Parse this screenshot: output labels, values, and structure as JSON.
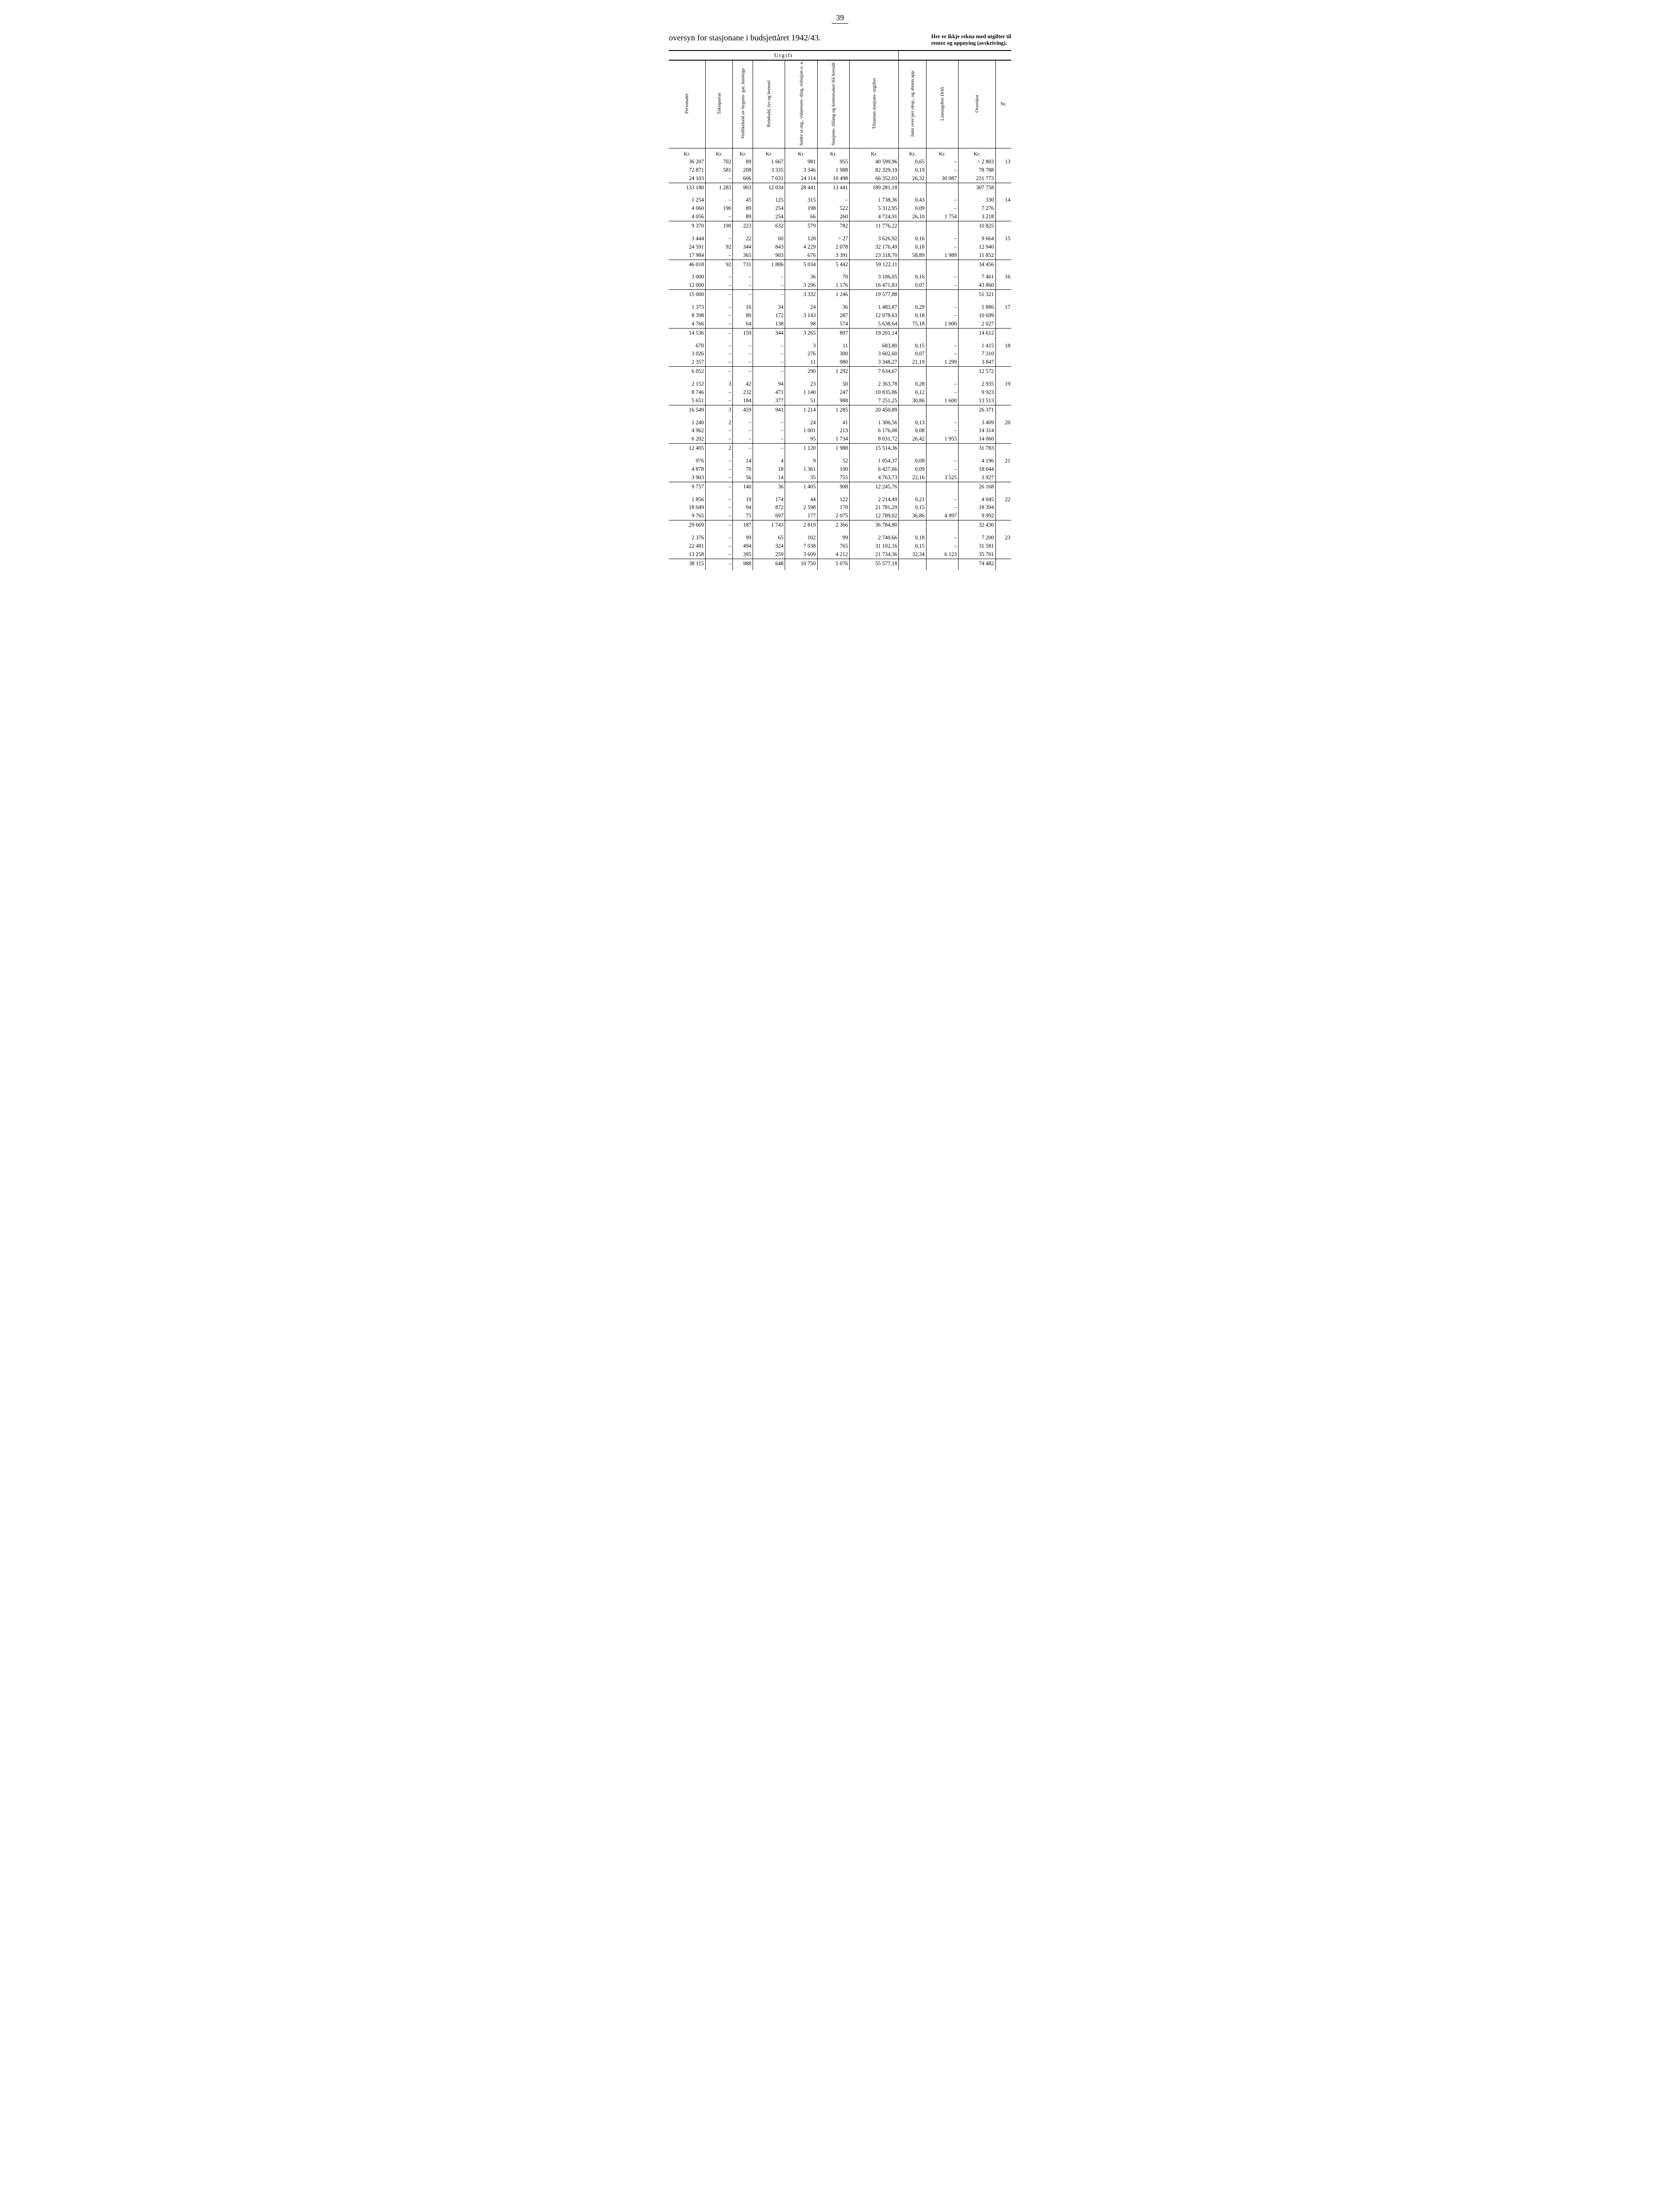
{
  "page_number": "39",
  "title_left": "oversyn for stasjonane i budsjettåret 1942/43.",
  "note_right_line1": "Her er ikkje rekna med utgifter til",
  "note_right_line2": "renter og oppnying (avskriving).",
  "utgift_caption": "Utgift",
  "headers": {
    "c1": "Personalet",
    "c2": "Takstpartar",
    "c3": "Vedlikehald\nav bygnin-\ngar, husleige",
    "c4": "Reinhald,\nlys og\nbrensel",
    "c5": "Andre st.utg.,\nvidaresen-\nding, refusjon\no. a.",
    "c6": "Stasjons-\ntilfang og\nkontorsaker\nfrå hovudl.",
    "c7": "Tilsaman\nstasjons-\nutgifter",
    "c8": "Jamt over per\neksp., og\nabonn.app.",
    "c9": "Lineutgifter\nDrift",
    "c10": "Overskot",
    "c11": "Nr."
  },
  "kr": "Kr.",
  "groups": [
    {
      "nr": "13",
      "rows": [
        [
          "36 207",
          "702",
          "89",
          "1 667",
          "981",
          "955",
          "40 599,96",
          "0,65",
          "–",
          "÷   2 803"
        ],
        [
          "72 871",
          "581",
          "208",
          "3 335",
          "3 346",
          "1 988",
          "82 329,19",
          "0,19",
          "–",
          "78 788"
        ],
        [
          "24 103",
          "–",
          "606",
          "7 031",
          "24 114",
          "10 498",
          "66 352,03",
          "26,32",
          "30 087",
          "231 773"
        ]
      ],
      "sum": [
        "133 180",
        "1 283",
        "903",
        "12 034",
        "28 441",
        "13 441",
        "189 281,18",
        "",
        "",
        "307 758"
      ]
    },
    {
      "nr": "14",
      "rows": [
        [
          "1 254",
          "–",
          "45",
          "125",
          "315",
          "–",
          "1 738,36",
          "0,43",
          "–",
          "330"
        ],
        [
          "4 060",
          "190",
          "89",
          "254",
          "198",
          "522",
          "5 312,95",
          "0,09",
          "–",
          "7 276"
        ],
        [
          "4 056",
          "–",
          "89",
          "254",
          "66",
          "260",
          "4 724,91",
          "26,10",
          "1 754",
          "3 218"
        ]
      ],
      "sum": [
        "9 370",
        "190",
        "223",
        "632",
        "579",
        "782",
        "11 776,22",
        "",
        "",
        "10 825"
      ]
    },
    {
      "nr": "15",
      "rows": [
        [
          "3 444",
          "–",
          "22",
          "60",
          "128",
          "÷     27",
          "3 626,92",
          "0,16",
          "–",
          "9 664"
        ],
        [
          "24 591",
          "92",
          "344",
          "843",
          "4 229",
          "2 078",
          "32 176,49",
          "0,18",
          "–",
          "12 940"
        ],
        [
          "17 984",
          "–",
          "365",
          "903",
          "676",
          "3 391",
          "23 318,70",
          "58,89",
          "1 989",
          "11 852"
        ]
      ],
      "sum": [
        "46 018",
        "92",
        "731",
        "1 806",
        "5 034",
        "5 442",
        "59 122,11",
        "",
        "",
        "34 456"
      ]
    },
    {
      "nr": "16",
      "rows": [
        [
          "3 000",
          "–",
          "–",
          "–",
          "36",
          "70",
          "3 106,05",
          "0,16",
          "–",
          "7 461"
        ],
        [
          "12 000",
          "–",
          "–",
          "–",
          "3 296",
          "1 176",
          "16 471,83",
          "0,07",
          "–",
          "43 860"
        ]
      ],
      "sum": [
        "15 000",
        "–",
        "–",
        "–",
        "3 332",
        "1 246",
        "19 577,88",
        "",
        "",
        "51 321"
      ]
    },
    {
      "nr": "17",
      "rows": [
        [
          "1 373",
          "–",
          "16",
          "34",
          "24",
          "36",
          "1 483,87",
          "0,29",
          "–",
          "1 886"
        ],
        [
          "8 398",
          "–",
          "80",
          "172",
          "3 143",
          "287",
          "12 078,63",
          "0,18",
          "–",
          "10 699"
        ],
        [
          "4 766",
          "–",
          "64",
          "138",
          "98",
          "574",
          "5 638,64",
          "75,18",
          "1 000",
          "2 027"
        ]
      ],
      "sum": [
        "14 536",
        "–",
        "159",
        "344",
        "3 265",
        "897",
        "19 201,14",
        "",
        "",
        "14 612"
      ]
    },
    {
      "nr": "18",
      "rows": [
        [
          "670",
          "–",
          "–",
          "–",
          "3",
          "11",
          "683,80",
          "0,15",
          "–",
          "1 415"
        ],
        [
          "3 026",
          "–",
          "–",
          "–",
          "276",
          "300",
          "3 602,60",
          "0,07",
          "–",
          "7 310"
        ],
        [
          "2 357",
          "–",
          "–",
          "–",
          "11",
          "980",
          "3 348,27",
          "21,19",
          "1 299",
          "3 847"
        ]
      ],
      "sum": [
        "6 052",
        "–",
        "–",
        "–",
        "290",
        "1 292",
        "7 634,67",
        "",
        "",
        "12 572"
      ]
    },
    {
      "nr": "19",
      "rows": [
        [
          "2 152",
          "3",
          "42",
          "94",
          "23",
          "50",
          "2 363,78",
          "0,28",
          "–",
          "2 935"
        ],
        [
          "8 746",
          "–",
          "232",
          "471",
          "1 140",
          "247",
          "10 835,86",
          "0,12",
          "–",
          "9 923"
        ],
        [
          "5 651",
          "–",
          "184",
          "377",
          "51",
          "988",
          "7 251,25",
          "30,86",
          "1 600",
          "13 513"
        ]
      ],
      "sum": [
        "16 549",
        "3",
        "459",
        "941",
        "1 214",
        "1 285",
        "20 450,89",
        "",
        "",
        "26 371"
      ]
    },
    {
      "nr": "20",
      "rows": [
        [
          "1 240",
          "2",
          "–",
          "–",
          "24",
          "41",
          "1 306,56",
          "0,13",
          "–",
          "3 409"
        ],
        [
          "4 962",
          "–",
          "–",
          "–",
          "1 001",
          "213",
          "6 176,08",
          "0,08",
          "–",
          "14 314"
        ],
        [
          "6 202",
          "–",
          "–",
          "–",
          "95",
          "1 734",
          "8 031,72",
          "26,42",
          "1 955",
          "14 060"
        ]
      ],
      "sum": [
        "12 405",
        "2",
        "–",
        "–",
        "1 120",
        "1 988",
        "15 514,36",
        "",
        "",
        "31 783"
      ]
    },
    {
      "nr": "21",
      "rows": [
        [
          "976",
          "–",
          "14",
          "4",
          "9",
          "52",
          "1 054,37",
          "0,08",
          "–",
          "4 196"
        ],
        [
          "4 878",
          "–",
          "70",
          "18",
          "1 361",
          "100",
          "6 427,66",
          "0,09",
          "–",
          "18 044"
        ],
        [
          "3 903",
          "–",
          "56",
          "14",
          "35",
          "755",
          "4 763,73",
          "22,16",
          "3 525",
          "3 927"
        ]
      ],
      "sum": [
        "9 757",
        "–",
        "140",
        "36",
        "1 405",
        "908",
        "12 245,76",
        "",
        "",
        "26 168"
      ]
    },
    {
      "nr": "22",
      "rows": [
        [
          "1 856",
          "–",
          "19",
          "174",
          "44",
          "122",
          "2 214,49",
          "0,21",
          "–",
          "4 045"
        ],
        [
          "18 049",
          "–",
          "94",
          "872",
          "2 598",
          "170",
          "21 781,29",
          "0,15",
          "–",
          "18 394"
        ],
        [
          "9 765",
          "–",
          "75",
          "697",
          "177",
          "2 075",
          "12 789,02",
          "36,86",
          "4 997",
          "9 992"
        ]
      ],
      "sum": [
        "29 669",
        "–",
        "187",
        "1 743",
        "2 819",
        "2 366",
        "36 784,80",
        "",
        "",
        "32 430"
      ]
    },
    {
      "nr": "23",
      "rows": [
        [
          "2 376",
          "–",
          "99",
          "65",
          "102",
          "99",
          "2 740,66",
          "0,18",
          "–",
          "7 200"
        ],
        [
          "22 481",
          "–",
          "494",
          "324",
          "7 038",
          "765",
          "31 102,16",
          "0,15",
          "–",
          "31 581"
        ],
        [
          "13 258",
          "–",
          "395",
          "259",
          "3 609",
          "4 212",
          "21 734,36",
          "32,34",
          "6 123",
          "35 701"
        ]
      ],
      "sum": [
        "38 115",
        "–",
        "988",
        "648",
        "10 750",
        "5 076",
        "55 577,18",
        "",
        "",
        "74 482"
      ]
    }
  ]
}
